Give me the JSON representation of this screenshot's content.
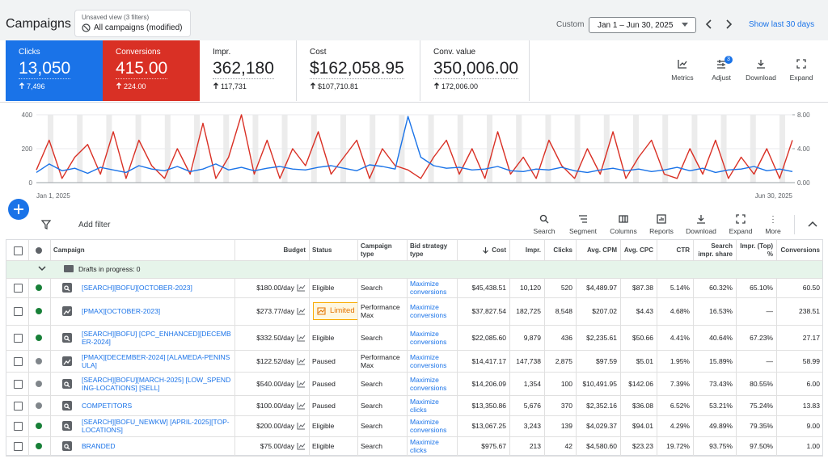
{
  "header": {
    "title": "Campaigns",
    "view_caption": "Unsaved view (3 filters)",
    "view_name": "All campaigns (modified)",
    "range_label": "Custom",
    "date_range": "Jan 1 – Jun 30, 2025",
    "shortcut": "Show last 30 days"
  },
  "scorecards": [
    {
      "label": "Clicks",
      "value": "13,050",
      "delta": "7,496",
      "bg": "#1a73e8"
    },
    {
      "label": "Conversions",
      "value": "415.00",
      "delta": "224.00",
      "bg": "#d93025"
    },
    {
      "label": "Impr.",
      "value": "362,180",
      "delta": "117,731",
      "bg": "#ffffff"
    },
    {
      "label": "Cost",
      "value": "$162,058.95",
      "delta": "$107,710.81",
      "bg": "#ffffff"
    },
    {
      "label": "Conv. value",
      "value": "350,006.00",
      "delta": "172,006.00",
      "bg": "#ffffff"
    }
  ],
  "card_tools": [
    {
      "label": "Metrics"
    },
    {
      "label": "Adjust",
      "badge": "3"
    },
    {
      "label": "Download"
    },
    {
      "label": "Expand"
    }
  ],
  "chart_data": {
    "type": "line",
    "categories": [
      "Jan 1, 2025",
      null,
      null,
      null,
      null,
      null,
      null,
      null,
      null,
      null,
      null,
      null,
      null,
      null,
      null,
      null,
      null,
      null,
      null,
      null,
      null,
      null,
      null,
      null,
      null,
      null,
      null,
      null,
      null,
      null,
      null,
      null,
      null,
      null,
      null,
      null,
      null,
      null,
      null,
      null,
      null,
      null,
      null,
      null,
      null,
      null,
      null,
      null,
      null,
      null,
      null,
      null,
      null,
      null,
      null,
      null,
      null,
      null,
      null,
      "Jun 30, 2025"
    ],
    "ylim": [
      0,
      400
    ],
    "yticks": [
      0,
      200,
      400
    ],
    "y2lim": [
      0,
      8
    ],
    "y2ticks": [
      {
        "value": 0,
        "label": "0.00"
      },
      {
        "value": 4,
        "label": "4.00"
      },
      {
        "value": 8,
        "label": "8.00"
      }
    ],
    "series": [
      {
        "name": "Clicks",
        "color": "#1a73e8",
        "values": [
          60,
          110,
          70,
          85,
          55,
          90,
          75,
          60,
          100,
          80,
          70,
          95,
          65,
          80,
          110,
          75,
          90,
          70,
          85,
          95,
          80,
          75,
          90,
          100,
          85,
          70,
          105,
          95,
          80,
          390,
          150,
          100,
          85,
          90,
          75,
          80,
          95,
          70,
          65,
          80,
          75,
          90,
          70,
          60,
          75,
          85,
          70,
          80,
          65,
          75,
          90,
          70,
          85,
          60,
          75,
          80,
          95,
          70,
          80,
          65
        ]
      },
      {
        "name": "Conversions",
        "color": "#d93025",
        "axis": "y2",
        "values": [
          1.5,
          5,
          0.5,
          3,
          4.5,
          1,
          6,
          0.5,
          5,
          2,
          0.5,
          4,
          1,
          7,
          0.5,
          3,
          8,
          1,
          5,
          0.5,
          4,
          2,
          6,
          1,
          3,
          5,
          0.5,
          4,
          2,
          1.5,
          0.5,
          3,
          5,
          1,
          4,
          0.5,
          6,
          1,
          3,
          0.5,
          5,
          2,
          0.5,
          4,
          1,
          6,
          0.5,
          3,
          5,
          1,
          0.5,
          4,
          1,
          5,
          0.5,
          3,
          1,
          4,
          0.5,
          5
        ]
      }
    ]
  },
  "filter_bar": {
    "add_filter": "Add filter",
    "tools": [
      "Search",
      "Segment",
      "Columns",
      "Reports",
      "Download",
      "Expand",
      "More"
    ]
  },
  "table": {
    "columns": [
      "Campaign",
      "Budget",
      "Status",
      "Campaign type",
      "Bid strategy type",
      "Cost",
      "Impr.",
      "Clicks",
      "Avg. CPM",
      "Avg. CPC",
      "CTR",
      "Search impr. share",
      "Impr. (Top) %",
      "Conversions"
    ],
    "drafts": "Drafts in progress: 0",
    "rows": [
      {
        "dot_color": "#188038",
        "kind": "search",
        "campaign": "[SEARCH][BOFU][OCTOBER-2023]",
        "budget": "$180.00/day",
        "status": "Eligible",
        "campaign_type": "Search",
        "bid_strategy": "Maximize conversions",
        "cost": "$45,438.51",
        "impr": "10,120",
        "clicks": "520",
        "avg_cpm": "$4,489.97",
        "avg_cpc": "$87.38",
        "ctr": "5.14%",
        "search_impr_share": "60.32%",
        "impr_top": "65.10%",
        "conversions": "60.50"
      },
      {
        "dot_color": "#188038",
        "kind": "pmax",
        "campaign": "[PMAX][OCTOBER-2023]",
        "budget": "$273.77/day",
        "status": "Limited",
        "status_highlight": true,
        "campaign_type": "Performance Max",
        "bid_strategy": "Maximize conversions",
        "cost": "$37,827.54",
        "impr": "182,725",
        "clicks": "8,548",
        "avg_cpm": "$207.02",
        "avg_cpc": "$4.43",
        "ctr": "4.68%",
        "search_impr_share": "16.53%",
        "impr_top": "—",
        "conversions": "238.51"
      },
      {
        "dot_color": "#188038",
        "kind": "search",
        "campaign": "[SEARCH][BOFU] [CPC_ENHANCED][DECEMBER-2024]",
        "budget": "$332.50/day",
        "status": "Eligible",
        "campaign_type": "Search",
        "bid_strategy": "Maximize conversions",
        "cost": "$22,085.60",
        "impr": "9,879",
        "clicks": "436",
        "avg_cpm": "$2,235.61",
        "avg_cpc": "$50.66",
        "ctr": "4.41%",
        "search_impr_share": "40.64%",
        "impr_top": "67.23%",
        "conversions": "27.17"
      },
      {
        "dot_color": "#80868b",
        "kind": "pmax",
        "campaign": "[PMAX][DECEMBER-2024] [ALAMEDA-PENINSULA]",
        "budget": "$122.52/day",
        "status": "Paused",
        "campaign_type": "Performance Max",
        "bid_strategy": "Maximize conversions",
        "cost": "$14,417.17",
        "impr": "147,738",
        "clicks": "2,875",
        "avg_cpm": "$97.59",
        "avg_cpc": "$5.01",
        "ctr": "1.95%",
        "search_impr_share": "15.89%",
        "impr_top": "—",
        "conversions": "58.99"
      },
      {
        "dot_color": "#80868b",
        "kind": "search",
        "campaign": "[SEARCH][BOFU][MARCH-2025] [LOW_SPENDING-LOCATIONS] [SELL]",
        "budget": "$540.00/day",
        "status": "Paused",
        "campaign_type": "Search",
        "bid_strategy": "Maximize conversions",
        "cost": "$14,206.09",
        "impr": "1,354",
        "clicks": "100",
        "avg_cpm": "$10,491.95",
        "avg_cpc": "$142.06",
        "ctr": "7.39%",
        "search_impr_share": "73.43%",
        "impr_top": "80.55%",
        "conversions": "6.00"
      },
      {
        "dot_color": "#80868b",
        "kind": "search",
        "campaign": "COMPETITORS",
        "budget": "$100.00/day",
        "status": "Paused",
        "campaign_type": "Search",
        "bid_strategy": "Maximize clicks",
        "cost": "$13,350.86",
        "impr": "5,676",
        "clicks": "370",
        "avg_cpm": "$2,352.16",
        "avg_cpc": "$36.08",
        "ctr": "6.52%",
        "search_impr_share": "53.21%",
        "impr_top": "75.24%",
        "conversions": "13.83"
      },
      {
        "dot_color": "#188038",
        "kind": "search",
        "campaign": "[SEARCH][BOFU_NEWKW] [APRIL-2025][TOP-LOCATIONS]",
        "budget": "$200.00/day",
        "status": "Eligible",
        "campaign_type": "Search",
        "bid_strategy": "Maximize conversions",
        "cost": "$13,067.25",
        "impr": "3,243",
        "clicks": "139",
        "avg_cpm": "$4,029.37",
        "avg_cpc": "$94.01",
        "ctr": "4.29%",
        "search_impr_share": "49.89%",
        "impr_top": "79.35%",
        "conversions": "9.00"
      },
      {
        "dot_color": "#188038",
        "kind": "search",
        "campaign": "BRANDED",
        "budget": "$75.00/day",
        "status": "Eligible",
        "campaign_type": "Search",
        "bid_strategy": "Maximize clicks",
        "cost": "$975.67",
        "impr": "213",
        "clicks": "42",
        "avg_cpm": "$4,580.60",
        "avg_cpc": "$23.23",
        "ctr": "19.72%",
        "search_impr_share": "93.75%",
        "impr_top": "97.50%",
        "conversions": "1.00"
      }
    ]
  }
}
